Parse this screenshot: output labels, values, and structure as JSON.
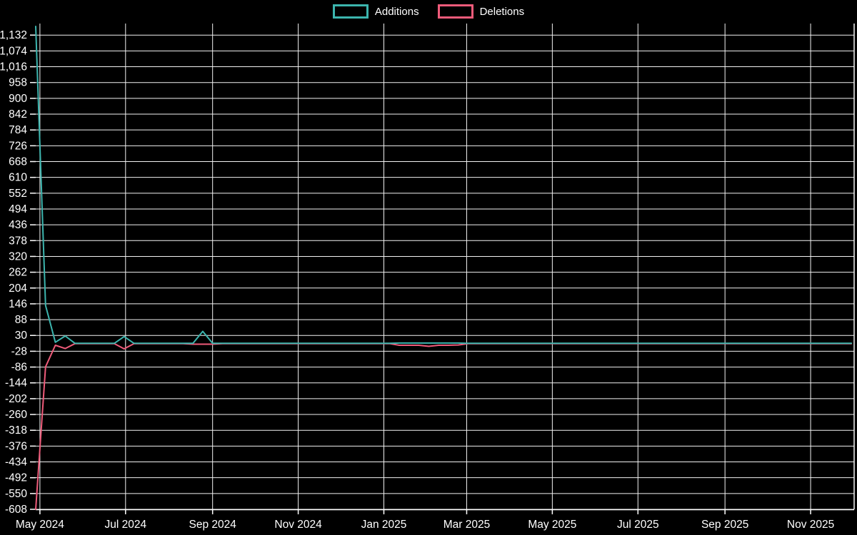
{
  "legend": {
    "items": [
      {
        "label": "Additions",
        "color": "#3cb5ae"
      },
      {
        "label": "Deletions",
        "color": "#ef5b7a"
      }
    ]
  },
  "style": {
    "background": "#000000",
    "grid_color": "#f2f2f2",
    "axis_color": "#ffffff",
    "label_color": "#ffffff"
  },
  "chart_data": {
    "type": "line",
    "title": "",
    "xlabel": "",
    "ylabel": "",
    "legend_position": "top-center",
    "grid": true,
    "x_domain": [
      "2024-04-28",
      "2025-12-02"
    ],
    "y_domain": [
      -608,
      1164
    ],
    "x_ticks": [
      {
        "date": "2024-05-01",
        "label": "May 2024"
      },
      {
        "date": "2024-07-01",
        "label": "Jul 2024"
      },
      {
        "date": "2024-09-01",
        "label": "Sep 2024"
      },
      {
        "date": "2024-11-01",
        "label": "Nov 2024"
      },
      {
        "date": "2025-01-01",
        "label": "Jan 2025"
      },
      {
        "date": "2025-03-01",
        "label": "Mar 2025"
      },
      {
        "date": "2025-05-01",
        "label": "May 2025"
      },
      {
        "date": "2025-07-01",
        "label": "Jul 2025"
      },
      {
        "date": "2025-09-01",
        "label": "Sep 2025"
      },
      {
        "date": "2025-11-01",
        "label": "Nov 2025"
      }
    ],
    "y_ticks": [
      {
        "value": 1132,
        "label": "1,132"
      },
      {
        "value": 1074,
        "label": "1,074"
      },
      {
        "value": 1016,
        "label": "1,016"
      },
      {
        "value": 958,
        "label": "958"
      },
      {
        "value": 900,
        "label": "900"
      },
      {
        "value": 842,
        "label": "842"
      },
      {
        "value": 784,
        "label": "784"
      },
      {
        "value": 726,
        "label": "726"
      },
      {
        "value": 668,
        "label": "668"
      },
      {
        "value": 610,
        "label": "610"
      },
      {
        "value": 552,
        "label": "552"
      },
      {
        "value": 494,
        "label": "494"
      },
      {
        "value": 436,
        "label": "436"
      },
      {
        "value": 378,
        "label": "378"
      },
      {
        "value": 320,
        "label": "320"
      },
      {
        "value": 262,
        "label": "262"
      },
      {
        "value": 204,
        "label": "204"
      },
      {
        "value": 146,
        "label": "146"
      },
      {
        "value": 88,
        "label": "88"
      },
      {
        "value": 30,
        "label": "30"
      },
      {
        "value": -28,
        "label": "-28"
      },
      {
        "value": -86,
        "label": "-86"
      },
      {
        "value": -144,
        "label": "-144"
      },
      {
        "value": -202,
        "label": "-202"
      },
      {
        "value": -260,
        "label": "-260"
      },
      {
        "value": -318,
        "label": "-318"
      },
      {
        "value": -376,
        "label": "-376"
      },
      {
        "value": -434,
        "label": "-434"
      },
      {
        "value": -492,
        "label": "-492"
      },
      {
        "value": -550,
        "label": "-550"
      },
      {
        "value": -608,
        "label": "-608"
      }
    ],
    "series": [
      {
        "name": "Additions",
        "color": "#3cb5ae",
        "week_index": 1
      },
      {
        "name": "Deletions",
        "color": "#ef5b7a",
        "week_index": 2
      }
    ],
    "weeks": [
      [
        "2024-04-28",
        1164,
        -608
      ],
      [
        "2024-05-05",
        140,
        -85
      ],
      [
        "2024-05-12",
        5,
        -6
      ],
      [
        "2024-05-19",
        28,
        -18
      ],
      [
        "2024-05-26",
        1,
        0
      ],
      [
        "2024-06-02",
        1,
        0
      ],
      [
        "2024-06-09",
        1,
        0
      ],
      [
        "2024-06-16",
        1,
        0
      ],
      [
        "2024-06-23",
        1,
        0
      ],
      [
        "2024-06-30",
        26,
        -19
      ],
      [
        "2024-07-07",
        1,
        0
      ],
      [
        "2024-07-14",
        1,
        0
      ],
      [
        "2024-07-21",
        1,
        0
      ],
      [
        "2024-07-28",
        1,
        0
      ],
      [
        "2024-08-04",
        1,
        0
      ],
      [
        "2024-08-11",
        1,
        0
      ],
      [
        "2024-08-18",
        1,
        -2
      ],
      [
        "2024-08-25",
        45,
        -2
      ],
      [
        "2024-09-01",
        1,
        -2
      ],
      [
        "2024-09-08",
        1,
        0
      ],
      [
        "2024-09-15",
        1,
        0
      ],
      [
        "2024-09-22",
        1,
        0
      ],
      [
        "2024-09-29",
        1,
        0
      ],
      [
        "2024-10-06",
        1,
        0
      ],
      [
        "2024-10-13",
        1,
        0
      ],
      [
        "2024-10-20",
        1,
        0
      ],
      [
        "2024-10-27",
        1,
        0
      ],
      [
        "2024-11-03",
        1,
        0
      ],
      [
        "2024-11-10",
        1,
        0
      ],
      [
        "2024-11-17",
        1,
        0
      ],
      [
        "2024-11-24",
        1,
        0
      ],
      [
        "2024-12-01",
        1,
        0
      ],
      [
        "2024-12-08",
        1,
        0
      ],
      [
        "2024-12-15",
        1,
        0
      ],
      [
        "2024-12-22",
        1,
        0
      ],
      [
        "2024-12-29",
        1,
        0
      ],
      [
        "2025-01-05",
        1,
        0
      ],
      [
        "2025-01-12",
        2,
        -6
      ],
      [
        "2025-01-19",
        2,
        -6
      ],
      [
        "2025-01-26",
        2,
        -6
      ],
      [
        "2025-02-02",
        2,
        -10
      ],
      [
        "2025-02-09",
        2,
        -6
      ],
      [
        "2025-02-16",
        2,
        -6
      ],
      [
        "2025-02-23",
        2,
        -5
      ],
      [
        "2025-03-02",
        1,
        0
      ],
      [
        "2025-03-09",
        1,
        0
      ],
      [
        "2025-03-16",
        1,
        0
      ],
      [
        "2025-03-23",
        1,
        0
      ],
      [
        "2025-03-30",
        1,
        0
      ],
      [
        "2025-04-06",
        1,
        0
      ],
      [
        "2025-04-13",
        1,
        0
      ],
      [
        "2025-04-20",
        1,
        0
      ],
      [
        "2025-04-27",
        1,
        0
      ],
      [
        "2025-05-04",
        1,
        0
      ],
      [
        "2025-05-11",
        1,
        0
      ],
      [
        "2025-05-18",
        1,
        0
      ],
      [
        "2025-05-25",
        1,
        0
      ],
      [
        "2025-06-01",
        1,
        0
      ],
      [
        "2025-06-08",
        1,
        0
      ],
      [
        "2025-06-15",
        1,
        0
      ],
      [
        "2025-06-22",
        1,
        0
      ],
      [
        "2025-06-29",
        1,
        0
      ],
      [
        "2025-07-06",
        1,
        0
      ],
      [
        "2025-07-13",
        1,
        0
      ],
      [
        "2025-07-20",
        1,
        0
      ],
      [
        "2025-07-27",
        1,
        0
      ],
      [
        "2025-08-03",
        1,
        0
      ],
      [
        "2025-08-10",
        1,
        0
      ],
      [
        "2025-08-17",
        1,
        0
      ],
      [
        "2025-08-24",
        1,
        0
      ],
      [
        "2025-08-31",
        1,
        0
      ],
      [
        "2025-09-07",
        1,
        0
      ],
      [
        "2025-09-14",
        1,
        0
      ],
      [
        "2025-09-21",
        1,
        0
      ],
      [
        "2025-09-28",
        1,
        0
      ],
      [
        "2025-10-05",
        1,
        0
      ],
      [
        "2025-10-12",
        1,
        0
      ],
      [
        "2025-10-19",
        1,
        0
      ],
      [
        "2025-10-26",
        1,
        0
      ],
      [
        "2025-11-02",
        1,
        0
      ],
      [
        "2025-11-09",
        1,
        0
      ],
      [
        "2025-11-16",
        1,
        0
      ],
      [
        "2025-11-23",
        1,
        0
      ],
      [
        "2025-11-30",
        1,
        0
      ]
    ]
  }
}
